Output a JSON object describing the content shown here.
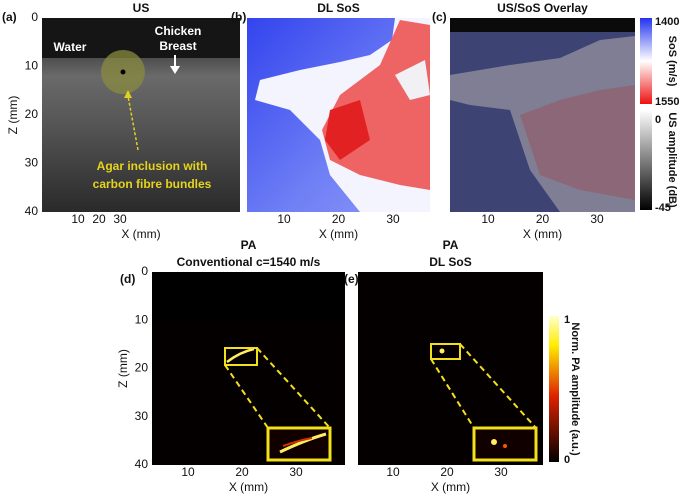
{
  "panels": [
    {
      "label": "(a)",
      "title": [
        "US"
      ],
      "y_axis_label": "Z (mm)",
      "x_axis_label": "X (mm)",
      "yticks": [
        0,
        10,
        20,
        30,
        40
      ],
      "xticks": [
        10,
        20,
        30
      ],
      "annotations": [
        "Water",
        "Chicken",
        "Breast",
        "Agar inclusion with",
        "carbon fibre bundles"
      ]
    },
    {
      "label": "(b)",
      "title": [
        "DL SoS"
      ],
      "x_axis_label": "X (mm)",
      "xticks": [
        10,
        20,
        30
      ]
    },
    {
      "label": "(c)",
      "title": [
        "US/SoS Overlay"
      ],
      "x_axis_label": "X (mm)",
      "xticks": [
        10,
        20,
        30
      ]
    },
    {
      "label": "(d)",
      "title": [
        "PA",
        "Conventional c=1540 m/s"
      ],
      "y_axis_label": "Z (mm)",
      "x_axis_label": "X (mm)",
      "yticks": [
        0,
        10,
        20,
        30,
        40
      ],
      "xticks": [
        10,
        20,
        30
      ]
    },
    {
      "label": "(e)",
      "title": [
        "PA",
        "DL SoS"
      ],
      "x_axis_label": "X (mm)",
      "xticks": [
        10,
        20,
        30
      ]
    }
  ],
  "colorbars": [
    {
      "label": "SoS (m/s)",
      "ticks": [
        1400,
        1550
      ]
    },
    {
      "label": "US amplitude (dB)",
      "ticks": [
        0,
        -45
      ]
    },
    {
      "label": "Norm. PA amplitude (a.u.)",
      "ticks": [
        1,
        0
      ]
    }
  ]
}
